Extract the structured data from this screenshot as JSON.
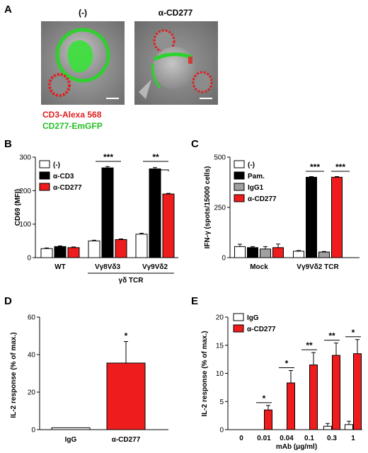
{
  "panels": {
    "A": {
      "label": "A",
      "images": [
        {
          "title": "(-)"
        },
        {
          "title": "α-CD277"
        }
      ],
      "legend": [
        {
          "text": "CD3-Alexa 568",
          "color": "#e02020"
        },
        {
          "text": "CD277-EmGFP",
          "color": "#22c022"
        }
      ]
    },
    "B": {
      "label": "B",
      "chart_data": {
        "type": "bar",
        "ylabel": "CD69 (MFI)",
        "ylim": [
          0,
          300
        ],
        "yticks": [
          "0",
          "100",
          "200",
          "300"
        ],
        "categories": [
          "WT",
          "Vγ8Vδ3",
          "Vγ9Vδ2"
        ],
        "group_label": "γδ TCR",
        "series": [
          {
            "name": "(-)",
            "color": "#ffffff",
            "values": [
              27,
              50,
              70
            ],
            "errors": [
              2,
              2,
              3
            ]
          },
          {
            "name": "α-CD3",
            "color": "#000000",
            "values": [
              33,
              268,
              265
            ],
            "errors": [
              2,
              4,
              4
            ]
          },
          {
            "name": "α-CD277",
            "color": "#ee1c1c",
            "values": [
              30,
              54,
              190
            ],
            "errors": [
              2,
              2,
              2
            ]
          }
        ],
        "annotations": [
          "***",
          "**"
        ]
      }
    },
    "C": {
      "label": "C",
      "chart_data": {
        "type": "bar",
        "ylabel": "IFN-γ (spots/15000 cells)",
        "ylim": [
          0,
          500
        ],
        "yticks": [
          "0",
          "250",
          "500"
        ],
        "categories": [
          "Mock",
          "Vγ9Vδ2 TCR"
        ],
        "series": [
          {
            "name": "(-)",
            "color": "#ffffff",
            "values": [
              55,
              32
            ],
            "errors": [
              12,
              3
            ]
          },
          {
            "name": "Pam.",
            "color": "#000000",
            "values": [
              50,
              400
            ],
            "errors": [
              5,
              3
            ]
          },
          {
            "name": "IgG1",
            "color": "#a0a0a0",
            "values": [
              43,
              28
            ],
            "errors": [
              12,
              3
            ]
          },
          {
            "name": "α-CD277",
            "color": "#ee1c1c",
            "values": [
              50,
              400
            ],
            "errors": [
              18,
              3
            ]
          }
        ],
        "annotations": [
          "***",
          "***"
        ]
      }
    },
    "D": {
      "label": "D",
      "chart_data": {
        "type": "bar",
        "ylabel": "IL-2 response (% of max.)",
        "ylim": [
          0,
          60
        ],
        "yticks": [
          "0",
          "20",
          "40",
          "60"
        ],
        "categories": [
          "IgG",
          "α-CD277"
        ],
        "values": [
          1,
          35.5
        ],
        "errors": [
          0,
          11.5
        ],
        "colors": [
          "#ffffff",
          "#ee1c1c"
        ],
        "annotations": [
          "*"
        ]
      }
    },
    "E": {
      "label": "E",
      "chart_data": {
        "type": "bar",
        "ylabel": "IL-2 response (% of max.)",
        "xlabel": "mAb (μg/ml)",
        "ylim": [
          0,
          20
        ],
        "yticks": [
          "0",
          "5",
          "10",
          "15",
          "20"
        ],
        "categories": [
          "0",
          "0.01",
          "0.04",
          "0.1",
          "0.3",
          "1"
        ],
        "series": [
          {
            "name": "IgG",
            "color": "#ffffff",
            "values": [
              0,
              0,
              0,
              0,
              0.6,
              0.9
            ],
            "errors": [
              0,
              0,
              0,
              0,
              0.5,
              0.6
            ]
          },
          {
            "name": "α-CD277",
            "color": "#ee1c1c",
            "values": [
              0,
              3.5,
              8.3,
              11.5,
              13.2,
              13.5
            ],
            "errors": [
              0,
              0.8,
              2.2,
              2.2,
              2.2,
              2.5
            ]
          }
        ],
        "annotations": [
          "*",
          "*",
          "**",
          "**",
          "*"
        ]
      }
    }
  }
}
